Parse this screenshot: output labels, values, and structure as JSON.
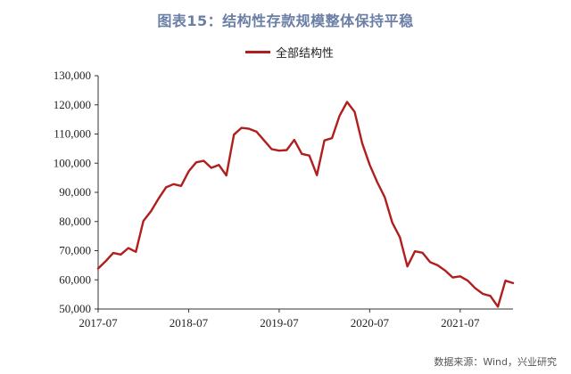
{
  "title": "图表15：结构性存款规模整体保持平稳",
  "source": "数据来源：Wind，兴业研究",
  "colors": {
    "series": "#b01e1e",
    "title": "#6b7fa6"
  },
  "chart_data": {
    "type": "line",
    "title": "图表15：结构性存款规模整体保持平稳",
    "xlabel": "",
    "ylabel": "",
    "ylim": [
      50000,
      130000
    ],
    "yticks": [
      "50,000",
      "60,000",
      "70,000",
      "80,000",
      "90,000",
      "100,000",
      "110,000",
      "120,000",
      "130,000"
    ],
    "xticks": [
      "2017-07",
      "2018-07",
      "2019-07",
      "2020-07",
      "2021-07"
    ],
    "legend": "top-center",
    "grid": false,
    "series": [
      {
        "name": "全部结构性",
        "x": [
          "2017-07",
          "2017-08",
          "2017-09",
          "2017-10",
          "2017-11",
          "2017-12",
          "2018-01",
          "2018-02",
          "2018-03",
          "2018-04",
          "2018-05",
          "2018-06",
          "2018-07",
          "2018-08",
          "2018-09",
          "2018-10",
          "2018-11",
          "2018-12",
          "2019-01",
          "2019-02",
          "2019-03",
          "2019-04",
          "2019-05",
          "2019-06",
          "2019-07",
          "2019-08",
          "2019-09",
          "2019-10",
          "2019-11",
          "2019-12",
          "2020-01",
          "2020-02",
          "2020-03",
          "2020-04",
          "2020-05",
          "2020-06",
          "2020-07",
          "2020-08",
          "2020-09",
          "2020-10",
          "2020-11",
          "2020-12",
          "2021-01",
          "2021-02",
          "2021-03",
          "2021-04",
          "2021-05",
          "2021-06",
          "2021-07",
          "2021-08",
          "2021-09",
          "2021-10",
          "2021-11",
          "2021-12",
          "2022-01",
          "2022-02"
        ],
        "values": [
          63900,
          66400,
          69200,
          68700,
          70900,
          69600,
          80200,
          83500,
          87800,
          91700,
          92800,
          92200,
          97200,
          100300,
          100800,
          98400,
          99400,
          95800,
          109800,
          112100,
          111800,
          110800,
          107800,
          104800,
          104300,
          104500,
          108000,
          103200,
          102600,
          95900,
          107800,
          108600,
          116200,
          121000,
          117600,
          106900,
          99400,
          93500,
          88300,
          79600,
          74600,
          64600,
          69800,
          69300,
          66100,
          65000,
          63200,
          60800,
          61200,
          59700,
          57100,
          55200,
          54500,
          50800,
          59700,
          58900
        ]
      }
    ]
  }
}
